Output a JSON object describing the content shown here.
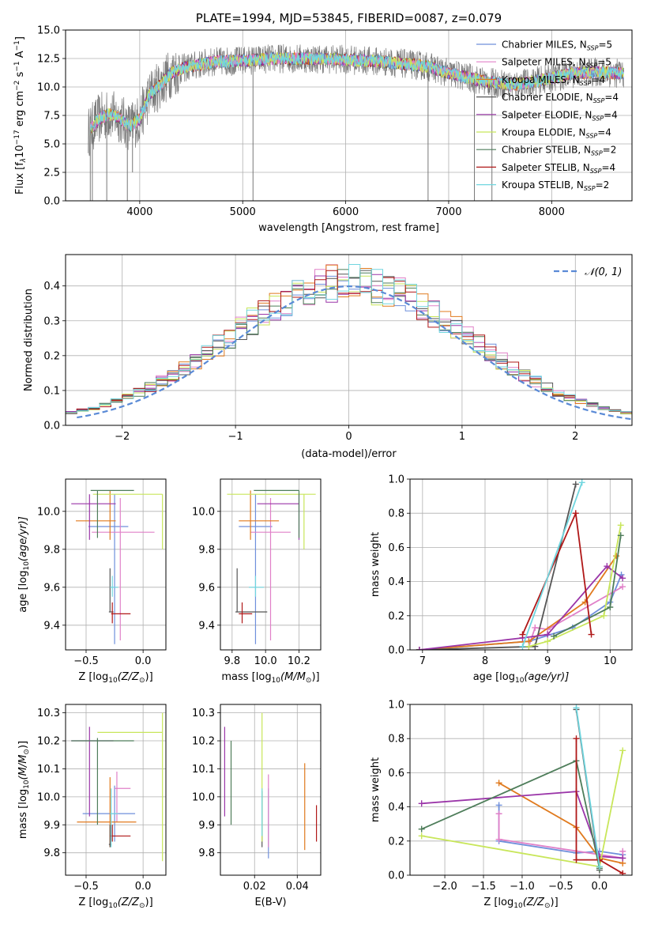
{
  "palette": [
    "#6f8fdb",
    "#e080c8",
    "#e07a1e",
    "#555555",
    "#9a35a8",
    "#c8e65a",
    "#4e7d5a",
    "#b01818",
    "#70d6df"
  ],
  "legend_colors": [
    "#6f8fdb",
    "#e080c8",
    "#e07a1e",
    "#555555",
    "#9a35a8",
    "#c8e65a",
    "#4e7d5a",
    "#b01818",
    "#70d6df"
  ],
  "chart_data": [
    {
      "id": "spectrum",
      "type": "line",
      "title": "PLATE=1994, MJD=53845, FIBERID=0087, z=0.079",
      "xlabel": "wavelength [Angstrom, rest frame]",
      "ylabel_main": "Flux [f",
      "ylabel_sub": "λ",
      "ylabel_rest": "10",
      "ylabel_exp1": "−17",
      "ylabel_mid": " erg cm",
      "ylabel_exp2": "−2",
      "ylabel_mid2": " s",
      "ylabel_exp3": "−1",
      "ylabel_mid3": " A",
      "ylabel_exp4": "−1",
      "ylabel_end": "]",
      "xlim": [
        3280,
        8780
      ],
      "ylim": [
        0,
        15
      ],
      "xticks": [
        4000,
        5000,
        6000,
        7000,
        8000
      ],
      "yticks": [
        0.0,
        2.5,
        5.0,
        7.5,
        10.0,
        12.5,
        15.0
      ],
      "ytick_labels": [
        "0.0",
        "2.5",
        "5.0",
        "7.5",
        "10.0",
        "12.5",
        "15.0"
      ],
      "legend_position": "top-right",
      "legend": [
        {
          "name": "Chabrier MILES, N",
          "sub": "SSP",
          "val": "=5"
        },
        {
          "name": "Salpeter MILES, N",
          "sub": "SSP",
          "val": "=5"
        },
        {
          "name": "Kroupa MILES, N",
          "sub": "SSP",
          "val": "=4"
        },
        {
          "name": "Chabrier ELODIE, N",
          "sub": "SSP",
          "val": "=4"
        },
        {
          "name": "Salpeter ELODIE, N",
          "sub": "SSP",
          "val": "=4"
        },
        {
          "name": "Kroupa ELODIE, N",
          "sub": "SSP",
          "val": "=4"
        },
        {
          "name": "Chabrier STELIB, N",
          "sub": "SSP",
          "val": "=2"
        },
        {
          "name": "Salpeter STELIB, N",
          "sub": "SSP",
          "val": "=4"
        },
        {
          "name": "Kroupa STELIB, N",
          "sub": "SSP",
          "val": "=2"
        }
      ],
      "continuum": {
        "x": [
          3500,
          3600,
          3700,
          3800,
          3900,
          4000,
          4100,
          4200,
          4300,
          4400,
          4500,
          4700,
          5000,
          5300,
          5600,
          6000,
          6400,
          6800,
          7000,
          7200,
          7400,
          7600,
          7800,
          8000,
          8200,
          8400,
          8700
        ],
        "y": [
          6.0,
          7.2,
          7.6,
          7.3,
          6.5,
          7.2,
          9.4,
          10.2,
          11.2,
          11.6,
          11.8,
          12.2,
          12.3,
          12.5,
          12.5,
          12.4,
          12.2,
          11.8,
          11.2,
          10.8,
          10.4,
          10.2,
          10.4,
          10.8,
          11.2,
          11.3,
          11.2
        ]
      },
      "dips": [
        {
          "x": 3520,
          "y": 0
        },
        {
          "x": 3540,
          "y": 0
        },
        {
          "x": 3680,
          "y": 0
        },
        {
          "x": 3880,
          "y": 0
        },
        {
          "x": 3930,
          "y": 2.5
        },
        {
          "x": 5100,
          "y": 0
        },
        {
          "x": 6800,
          "y": 0
        },
        {
          "x": 7250,
          "y": 0
        },
        {
          "x": 7420,
          "y": 0
        }
      ]
    },
    {
      "id": "residuals",
      "type": "step",
      "xlabel": "(data-model)/error",
      "ylabel": "Normed distribution",
      "xlim": [
        -2.5,
        2.5
      ],
      "ylim": [
        0,
        0.49
      ],
      "xticks": [
        -2,
        -1,
        0,
        1,
        2
      ],
      "xtick_labels": [
        "−2",
        "−1",
        "0",
        "1",
        "2"
      ],
      "yticks": [
        0.0,
        0.1,
        0.2,
        0.3,
        0.4
      ],
      "ytick_labels": [
        "0.0",
        "0.1",
        "0.2",
        "0.3",
        "0.4"
      ],
      "legend_label": "𝒩(0, 1)",
      "legend_position": "top-right",
      "bin_width": 0.1,
      "bin_start": -2.5
    },
    {
      "id": "z-age",
      "type": "scatter",
      "xlabel": "Z [log",
      "xlabel_sub": "10",
      "xlabel_rest": "(Z/Z",
      "xlabel_sun": "⊙",
      "xlabel_end": ")]",
      "ylabel": "age  [log",
      "ylabel_sub": "10",
      "ylabel_rest": "(age/yr)]",
      "xlim": [
        -0.68,
        0.2
      ],
      "ylim": [
        9.27,
        10.17
      ],
      "xticks": [
        -0.5,
        0.0
      ],
      "xtick_labels": [
        "−0.5",
        "0.0"
      ],
      "yticks": [
        9.4,
        9.6,
        9.8,
        10.0
      ],
      "ytick_labels": [
        "9.4",
        "9.6",
        "9.8",
        "10.0"
      ],
      "points": [
        {
          "x": -0.25,
          "y": 9.92,
          "ex": [
            -0.48,
            -0.13
          ],
          "ey": [
            9.3,
            10.09
          ],
          "c": 0
        },
        {
          "x": -0.2,
          "y": 9.89,
          "ex": [
            -0.45,
            0.1
          ],
          "ey": [
            9.32,
            10.07
          ],
          "c": 1
        },
        {
          "x": -0.29,
          "y": 9.95,
          "ex": [
            -0.59,
            -0.24
          ],
          "ey": [
            9.85,
            10.11
          ],
          "c": 2
        },
        {
          "x": -0.29,
          "y": 9.47,
          "ex": [
            -0.3,
            -0.26
          ],
          "ey": [
            9.47,
            9.7
          ],
          "c": 3
        },
        {
          "x": -0.47,
          "y": 10.04,
          "ex": [
            -0.63,
            -0.24
          ],
          "ey": [
            9.85,
            10.09
          ],
          "c": 4
        },
        {
          "x": 0.17,
          "y": 10.09,
          "ex": [
            -0.44,
            0.17
          ],
          "ey": [
            9.8,
            10.09
          ],
          "c": 5
        },
        {
          "x": -0.4,
          "y": 10.11,
          "ex": [
            -0.46,
            -0.08
          ],
          "ey": [
            9.86,
            10.11
          ],
          "c": 6
        },
        {
          "x": -0.27,
          "y": 9.46,
          "ex": [
            -0.28,
            -0.11
          ],
          "ey": [
            9.41,
            9.52
          ],
          "c": 7
        },
        {
          "x": -0.27,
          "y": 9.6,
          "ex": [
            -0.29,
            -0.22
          ],
          "ey": [
            9.55,
            9.66
          ],
          "c": 8
        }
      ]
    },
    {
      "id": "mass-age",
      "type": "scatter",
      "xlabel": "mass [log",
      "xlabel_sub": "10",
      "xlabel_rest": "(M/M",
      "xlabel_sun": "⊙",
      "xlabel_end": ")]",
      "xlim": [
        9.73,
        10.33
      ],
      "ylim": [
        9.27,
        10.17
      ],
      "xticks": [
        9.8,
        10.0,
        10.2
      ],
      "xtick_labels": [
        "9.8",
        "10.0",
        "10.2"
      ],
      "yticks": [
        9.4,
        9.6,
        9.8,
        10.0
      ],
      "ytick_labels": [
        "9.4",
        "9.6",
        "9.8",
        "10.0"
      ],
      "points": [
        {
          "x": 9.94,
          "y": 9.92,
          "ex": [
            9.84,
            10.04
          ],
          "ey": [
            9.3,
            10.09
          ],
          "c": 0
        },
        {
          "x": 10.03,
          "y": 9.89,
          "ex": [
            9.91,
            10.15
          ],
          "ey": [
            9.32,
            10.07
          ],
          "c": 1
        },
        {
          "x": 9.91,
          "y": 9.95,
          "ex": [
            9.84,
            10.08
          ],
          "ey": [
            9.85,
            10.11
          ],
          "c": 2
        },
        {
          "x": 9.83,
          "y": 9.47,
          "ex": [
            9.82,
            10.01
          ],
          "ey": [
            9.47,
            9.7
          ],
          "c": 3
        },
        {
          "x": 10.2,
          "y": 10.04,
          "ex": [
            9.95,
            10.2
          ],
          "ey": [
            9.85,
            10.09
          ],
          "c": 4
        },
        {
          "x": 10.23,
          "y": 10.09,
          "ex": [
            9.77,
            10.3
          ],
          "ey": [
            9.8,
            10.09
          ],
          "c": 5
        },
        {
          "x": 10.2,
          "y": 10.11,
          "ex": [
            9.93,
            10.2
          ],
          "ey": [
            9.86,
            10.11
          ],
          "c": 6
        },
        {
          "x": 9.86,
          "y": 9.46,
          "ex": [
            9.84,
            9.92
          ],
          "ey": [
            9.41,
            9.52
          ],
          "c": 7
        },
        {
          "x": 9.94,
          "y": 9.6,
          "ex": [
            9.9,
            9.99
          ],
          "ey": [
            9.55,
            9.66
          ],
          "c": 8
        }
      ]
    },
    {
      "id": "age-weight",
      "type": "line",
      "xlabel": "age  [log",
      "xlabel_sub": "10",
      "xlabel_rest": "(age/yr)]",
      "ylabel": "mass weight",
      "xlim": [
        6.8,
        10.35
      ],
      "ylim": [
        0,
        1.0
      ],
      "xticks": [
        7,
        8,
        9,
        10
      ],
      "xtick_labels": [
        "7",
        "8",
        "9",
        "10"
      ],
      "yticks": [
        0.0,
        0.2,
        0.4,
        0.6,
        0.8,
        1.0
      ],
      "ytick_labels": [
        "0.0",
        "0.2",
        "0.4",
        "0.6",
        "0.8",
        "1.0"
      ],
      "series": [
        {
          "c": 0,
          "x": [
            6.95,
            8.7,
            9.4,
            10.0,
            10.18
          ],
          "y": [
            0.0,
            0.05,
            0.13,
            0.28,
            0.44
          ]
        },
        {
          "c": 1,
          "x": [
            8.7,
            8.8,
            9.0,
            10.2
          ],
          "y": [
            0.02,
            0.13,
            0.12,
            0.37
          ]
        },
        {
          "c": 2,
          "x": [
            6.95,
            8.7,
            9.6,
            10.1
          ],
          "y": [
            0.0,
            0.05,
            0.28,
            0.55
          ]
        },
        {
          "c": 3,
          "x": [
            6.95,
            8.8,
            9.45
          ],
          "y": [
            0.0,
            0.02,
            0.97
          ]
        },
        {
          "c": 4,
          "x": [
            6.95,
            8.6,
            9.0,
            9.95,
            10.2
          ],
          "y": [
            0.0,
            0.07,
            0.09,
            0.49,
            0.42
          ]
        },
        {
          "c": 5,
          "x": [
            8.7,
            9.0,
            9.9,
            10.17
          ],
          "y": [
            0.02,
            0.05,
            0.2,
            0.73
          ]
        },
        {
          "c": 6,
          "x": [
            9.1,
            10.0,
            10.17
          ],
          "y": [
            0.08,
            0.25,
            0.67
          ]
        },
        {
          "c": 7,
          "x": [
            8.6,
            9.45,
            9.7
          ],
          "y": [
            0.09,
            0.8,
            0.09
          ]
        },
        {
          "c": 8,
          "x": [
            8.6,
            9.55
          ],
          "y": [
            0.02,
            0.98
          ]
        }
      ]
    },
    {
      "id": "z-mass",
      "type": "scatter",
      "xlabel": "Z [log",
      "xlabel_sub": "10",
      "xlabel_rest": "(Z/Z",
      "xlabel_sun": "⊙",
      "xlabel_end": ")]",
      "ylabel": "mass [log",
      "ylabel_sub": "10",
      "ylabel_rest": "(M/M",
      "ylabel_sun": "⊙",
      "ylabel_end": ")]",
      "xlim": [
        -0.68,
        0.2
      ],
      "ylim": [
        9.72,
        10.33
      ],
      "xticks": [
        -0.5,
        0.0
      ],
      "xtick_labels": [
        "−0.5",
        "0.0"
      ],
      "yticks": [
        9.8,
        9.9,
        10.0,
        10.1,
        10.2,
        10.3
      ],
      "ytick_labels": [
        "9.8",
        "9.9",
        "10.0",
        "10.1",
        "10.2",
        "10.3"
      ],
      "points": [
        {
          "x": -0.25,
          "y": 9.94,
          "ex": [
            -0.53,
            -0.07
          ],
          "ey": [
            9.84,
            10.04
          ],
          "c": 0
        },
        {
          "x": -0.23,
          "y": 10.03,
          "ex": [
            -0.25,
            -0.11
          ],
          "ey": [
            9.91,
            10.09
          ],
          "c": 1
        },
        {
          "x": -0.29,
          "y": 9.91,
          "ex": [
            -0.58,
            -0.06
          ],
          "ey": [
            9.82,
            10.07
          ],
          "c": 2
        },
        {
          "x": -0.29,
          "y": 9.83,
          "ex": [
            -0.3,
            -0.28
          ],
          "ey": [
            9.82,
            9.9
          ],
          "c": 3
        },
        {
          "x": -0.47,
          "y": 10.2,
          "ex": [
            -0.63,
            -0.26
          ],
          "ey": [
            9.93,
            10.25
          ],
          "c": 4
        },
        {
          "x": 0.17,
          "y": 10.23,
          "ex": [
            -0.4,
            0.17
          ],
          "ey": [
            9.77,
            10.3
          ],
          "c": 5
        },
        {
          "x": -0.4,
          "y": 10.2,
          "ex": [
            -0.63,
            -0.08
          ],
          "ey": [
            9.9,
            10.21
          ],
          "c": 6
        },
        {
          "x": -0.27,
          "y": 9.86,
          "ex": [
            -0.29,
            -0.11
          ],
          "ey": [
            9.84,
            9.9
          ],
          "c": 7
        },
        {
          "x": -0.28,
          "y": 9.94,
          "ex": [
            -0.29,
            -0.22
          ],
          "ey": [
            9.82,
            10.03
          ],
          "c": 8
        }
      ]
    },
    {
      "id": "ebv-mass",
      "type": "scatter",
      "xlabel": "E(B-V)",
      "xlim": [
        0.004,
        0.051
      ],
      "ylim": [
        9.72,
        10.33
      ],
      "xticks": [
        0.02,
        0.04
      ],
      "xtick_labels": [
        "0.02",
        "0.04"
      ],
      "yticks": [
        9.8,
        9.9,
        10.0,
        10.1,
        10.2,
        10.3
      ],
      "ytick_labels": [
        "9.8",
        "9.9",
        "10.0",
        "10.1",
        "10.2",
        "10.3"
      ],
      "points": [
        {
          "x": 0.0265,
          "ey": [
            9.78,
            10.03
          ],
          "c": 0
        },
        {
          "x": 0.0265,
          "ey": [
            9.82,
            10.08
          ],
          "c": 1
        },
        {
          "x": 0.0435,
          "ey": [
            9.81,
            10.12
          ],
          "c": 2
        },
        {
          "x": 0.0235,
          "ey": [
            9.82,
            10.02
          ],
          "c": 3
        },
        {
          "x": 0.006,
          "ey": [
            9.93,
            10.25
          ],
          "c": 4
        },
        {
          "x": 0.0235,
          "ey": [
            9.84,
            10.3
          ],
          "c": 5
        },
        {
          "x": 0.009,
          "ey": [
            9.9,
            10.2
          ],
          "c": 6
        },
        {
          "x": 0.049,
          "ey": [
            9.84,
            9.97
          ],
          "c": 7
        },
        {
          "x": 0.0235,
          "ey": [
            9.86,
            10.03
          ],
          "c": 8
        }
      ]
    },
    {
      "id": "z-weight",
      "type": "line",
      "xlabel": "Z [log",
      "xlabel_sub": "10",
      "xlabel_rest": "(Z/Z",
      "xlabel_sun": "⊙",
      "xlabel_end": ")]",
      "ylabel": "mass weight",
      "xlim": [
        -2.45,
        0.42
      ],
      "ylim": [
        0,
        1.0
      ],
      "xticks": [
        -2.0,
        -1.5,
        -1.0,
        -0.5,
        0.0
      ],
      "xtick_labels": [
        "−2.0",
        "−1.5",
        "−1.0",
        "−0.5",
        "0.0"
      ],
      "yticks": [
        0.0,
        0.2,
        0.4,
        0.6,
        0.8,
        1.0
      ],
      "ytick_labels": [
        "0.0",
        "0.2",
        "0.4",
        "0.6",
        "0.8",
        "1.0"
      ],
      "series": [
        {
          "c": 0,
          "x": [
            -1.3,
            -1.3,
            -0.3,
            0.0,
            0.3
          ],
          "y": [
            0.41,
            0.2,
            0.13,
            0.14,
            0.12
          ]
        },
        {
          "c": 1,
          "x": [
            -1.3,
            -1.3,
            0.3,
            0.3
          ],
          "y": [
            0.36,
            0.21,
            0.1,
            0.14
          ]
        },
        {
          "c": 2,
          "x": [
            -1.3,
            -0.3,
            0.0,
            0.3
          ],
          "y": [
            0.54,
            0.28,
            0.1,
            0.07
          ]
        },
        {
          "c": 3,
          "x": [
            -0.3,
            0.0
          ],
          "y": [
            0.97,
            0.03
          ]
        },
        {
          "c": 4,
          "x": [
            -2.3,
            -0.3,
            0.0,
            0.3
          ],
          "y": [
            0.42,
            0.49,
            0.11,
            0.1
          ]
        },
        {
          "c": 5,
          "x": [
            -2.3,
            0.0,
            0.3
          ],
          "y": [
            0.23,
            0.05,
            0.73
          ]
        },
        {
          "c": 6,
          "x": [
            -2.3,
            -0.3,
            0.0
          ],
          "y": [
            0.27,
            0.67,
            0.04
          ]
        },
        {
          "c": 7,
          "x": [
            -0.3,
            -0.3,
            0.0,
            0.3
          ],
          "y": [
            0.8,
            0.09,
            0.09,
            0.01
          ]
        },
        {
          "c": 8,
          "x": [
            -0.3,
            0.0
          ],
          "y": [
            0.98,
            0.05
          ]
        }
      ]
    }
  ]
}
